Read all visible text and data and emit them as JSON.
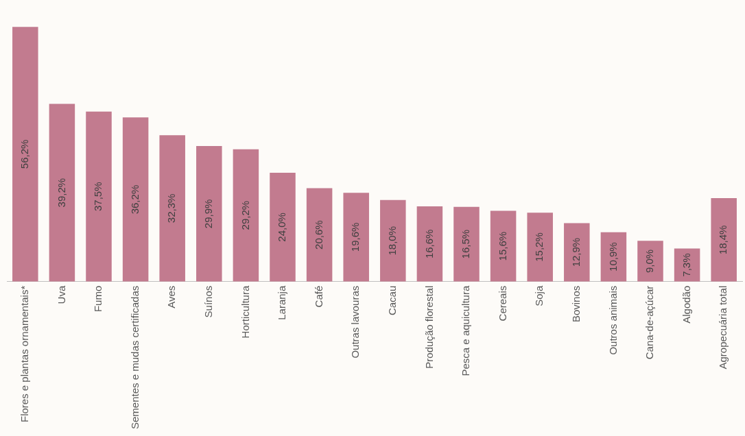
{
  "chart_data": {
    "type": "bar",
    "categories": [
      "Flores e plantas ornamentais*",
      "Uva",
      "Fumo",
      "Sementes e mudas certificadas",
      "Aves",
      "Suínos",
      "Horticultura",
      "Laranja",
      "Café",
      "Outras lavouras",
      "Cacau",
      "Produção florestal",
      "Pesca e aquicultura",
      "Cereais",
      "Soja",
      "Bovinos",
      "Outros animais",
      "Cana-de-açúcar",
      "Algodão",
      "Agropecuária total"
    ],
    "values": [
      56.2,
      39.2,
      37.5,
      36.2,
      32.3,
      29.9,
      29.2,
      24.0,
      20.6,
      19.6,
      18.0,
      16.6,
      16.5,
      15.6,
      15.2,
      12.9,
      10.9,
      9.0,
      7.3,
      18.4
    ],
    "value_labels": [
      "56,2%",
      "39,2%",
      "37,5%",
      "36,2%",
      "32,3%",
      "29,9%",
      "29,2%",
      "24,0%",
      "20,6%",
      "19,6%",
      "18,0%",
      "16,6%",
      "16,5%",
      "15,6%",
      "15,2%",
      "12,9%",
      "10,9%",
      "9,0%",
      "7,3%",
      "18,4%"
    ],
    "color": "#c27b8f",
    "grid": false,
    "legend": false,
    "tick_labels": "x"
  }
}
